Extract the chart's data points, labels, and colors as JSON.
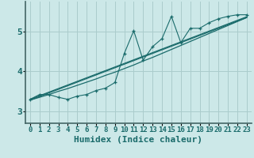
{
  "xlabel": "Humidex (Indice chaleur)",
  "bg_color": "#cce8e8",
  "grid_color": "#aacccc",
  "line_color": "#1a6b6b",
  "xlim": [
    -0.5,
    23.5
  ],
  "ylim": [
    2.7,
    5.75
  ],
  "yticks": [
    3,
    4,
    5
  ],
  "xticks": [
    0,
    1,
    2,
    3,
    4,
    5,
    6,
    7,
    8,
    9,
    10,
    11,
    12,
    13,
    14,
    15,
    16,
    17,
    18,
    19,
    20,
    21,
    22,
    23
  ],
  "data_line": [
    3.3,
    3.42,
    3.42,
    3.35,
    3.3,
    3.38,
    3.42,
    3.52,
    3.58,
    3.72,
    4.45,
    5.02,
    4.28,
    4.62,
    4.82,
    5.38,
    4.72,
    5.08,
    5.08,
    5.22,
    5.32,
    5.38,
    5.42,
    5.42
  ],
  "trend_line1": [
    3.3,
    3.39,
    3.48,
    3.57,
    3.66,
    3.75,
    3.84,
    3.93,
    4.02,
    4.11,
    4.2,
    4.29,
    4.38,
    4.47,
    4.56,
    4.65,
    4.74,
    4.83,
    4.92,
    5.01,
    5.1,
    5.19,
    5.28,
    5.37
  ],
  "trend_line2": [
    3.28,
    3.37,
    3.46,
    3.55,
    3.64,
    3.73,
    3.82,
    3.91,
    4.0,
    4.09,
    4.18,
    4.27,
    4.36,
    4.45,
    4.54,
    4.63,
    4.72,
    4.81,
    4.9,
    4.99,
    5.08,
    5.17,
    5.26,
    5.35
  ],
  "trend_curve": [
    3.28,
    3.35,
    3.42,
    3.5,
    3.57,
    3.65,
    3.73,
    3.81,
    3.9,
    3.98,
    4.07,
    4.16,
    4.26,
    4.35,
    4.45,
    4.55,
    4.65,
    4.75,
    4.85,
    4.95,
    5.05,
    5.15,
    5.25,
    5.35
  ],
  "xlabel_fontsize": 8,
  "ytick_fontsize": 8,
  "xtick_fontsize": 6.5
}
